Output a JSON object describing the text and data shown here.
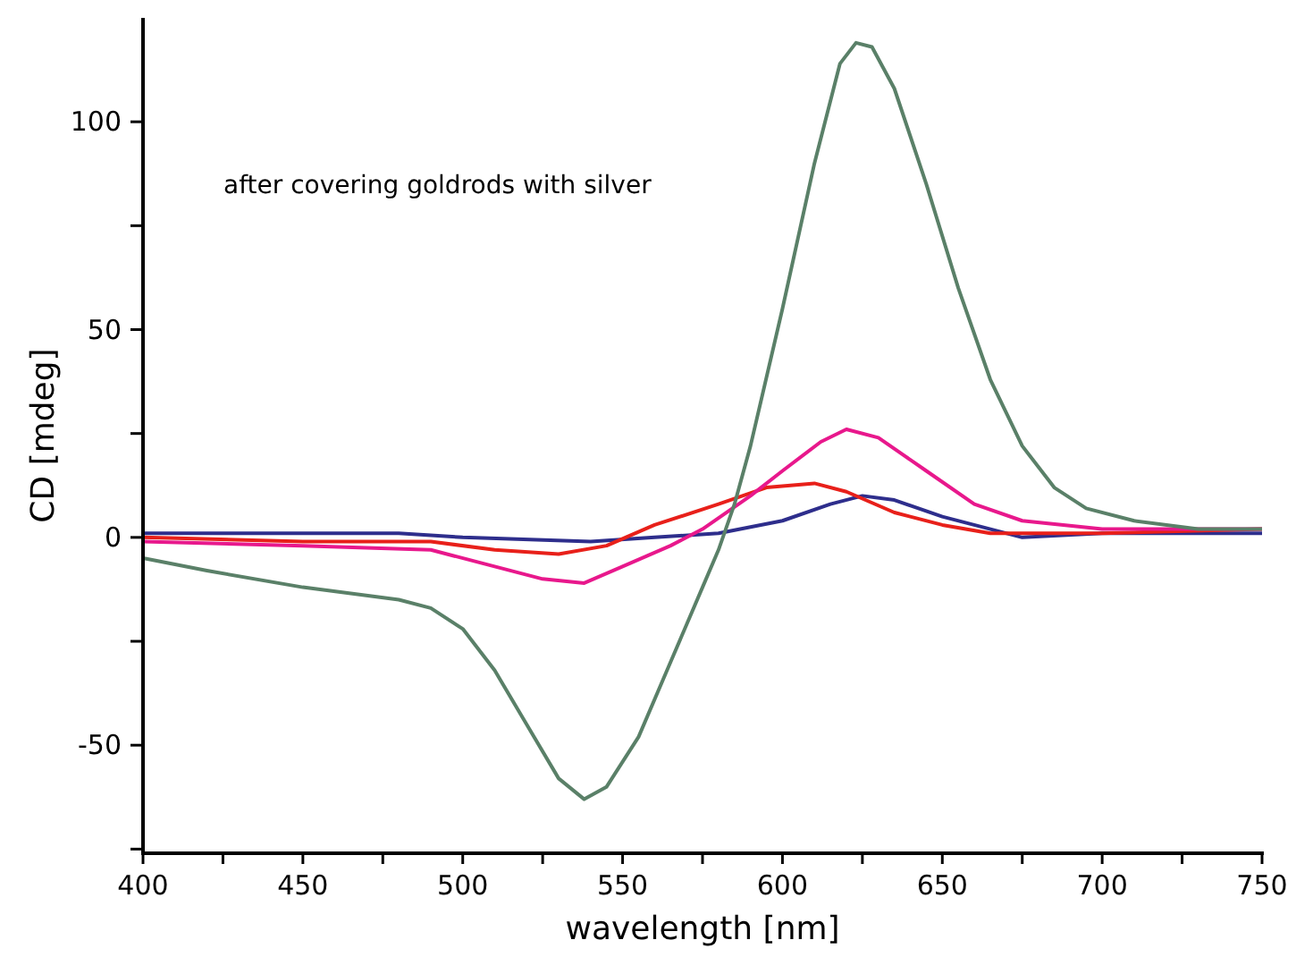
{
  "chart_data": {
    "type": "line",
    "xlabel": "wavelength [nm]",
    "ylabel": "CD [mdeg]",
    "annotations": [
      "after covering goldrods with silver"
    ],
    "xlim": [
      400,
      750
    ],
    "ylim": [
      -76,
      125
    ],
    "xticks": [
      400,
      {
        "value": 425,
        "label": null
      },
      450,
      {
        "value": 475,
        "label": null
      },
      500,
      {
        "value": 525,
        "label": null
      },
      550,
      {
        "value": 575,
        "label": null
      },
      600,
      {
        "value": 625,
        "label": null
      },
      650,
      {
        "value": 675,
        "label": null
      },
      700,
      {
        "value": 725,
        "label": null
      },
      750
    ],
    "yticks": [
      {
        "value": -75,
        "label": null
      },
      -50,
      {
        "value": -25,
        "label": null
      },
      0,
      {
        "value": 25,
        "label": null
      },
      50,
      {
        "value": 75,
        "label": null
      },
      100
    ],
    "grid": false,
    "marker": "none",
    "line_style": "solid",
    "series": [
      {
        "color": "#2e2e8c",
        "x": [
          400,
          450,
          480,
          500,
          540,
          560,
          580,
          600,
          615,
          625,
          635,
          650,
          675,
          700,
          750
        ],
        "values": [
          1,
          1,
          1,
          0,
          -1,
          0,
          1,
          4,
          8,
          10,
          9,
          5,
          0,
          1,
          1
        ]
      },
      {
        "color": "#e8201a",
        "x": [
          400,
          450,
          490,
          510,
          530,
          545,
          560,
          580,
          595,
          610,
          620,
          635,
          650,
          665,
          700,
          750
        ],
        "values": [
          0,
          -1,
          -1,
          -3,
          -4,
          -2,
          3,
          8,
          12,
          13,
          11,
          6,
          3,
          1,
          1,
          2
        ]
      },
      {
        "color": "#e8188c",
        "x": [
          400,
          450,
          490,
          510,
          525,
          538,
          550,
          565,
          575,
          590,
          600,
          612,
          620,
          630,
          645,
          660,
          675,
          700,
          750
        ],
        "values": [
          -1,
          -2,
          -3,
          -7,
          -10,
          -11,
          -7,
          -2,
          2,
          10,
          16,
          23,
          26,
          24,
          16,
          8,
          4,
          2,
          2
        ]
      },
      {
        "color": "#5a8068",
        "x": [
          400,
          420,
          450,
          480,
          490,
          500,
          510,
          520,
          530,
          538,
          545,
          555,
          565,
          575,
          580,
          585,
          590,
          600,
          610,
          618,
          623,
          628,
          635,
          645,
          655,
          665,
          675,
          685,
          695,
          710,
          730,
          750
        ],
        "values": [
          -5,
          -8,
          -12,
          -15,
          -17,
          -22,
          -32,
          -45,
          -58,
          -63,
          -60,
          -48,
          -30,
          -12,
          -3,
          8,
          22,
          55,
          90,
          114,
          119,
          118,
          108,
          85,
          60,
          38,
          22,
          12,
          7,
          4,
          2,
          2
        ]
      }
    ]
  }
}
